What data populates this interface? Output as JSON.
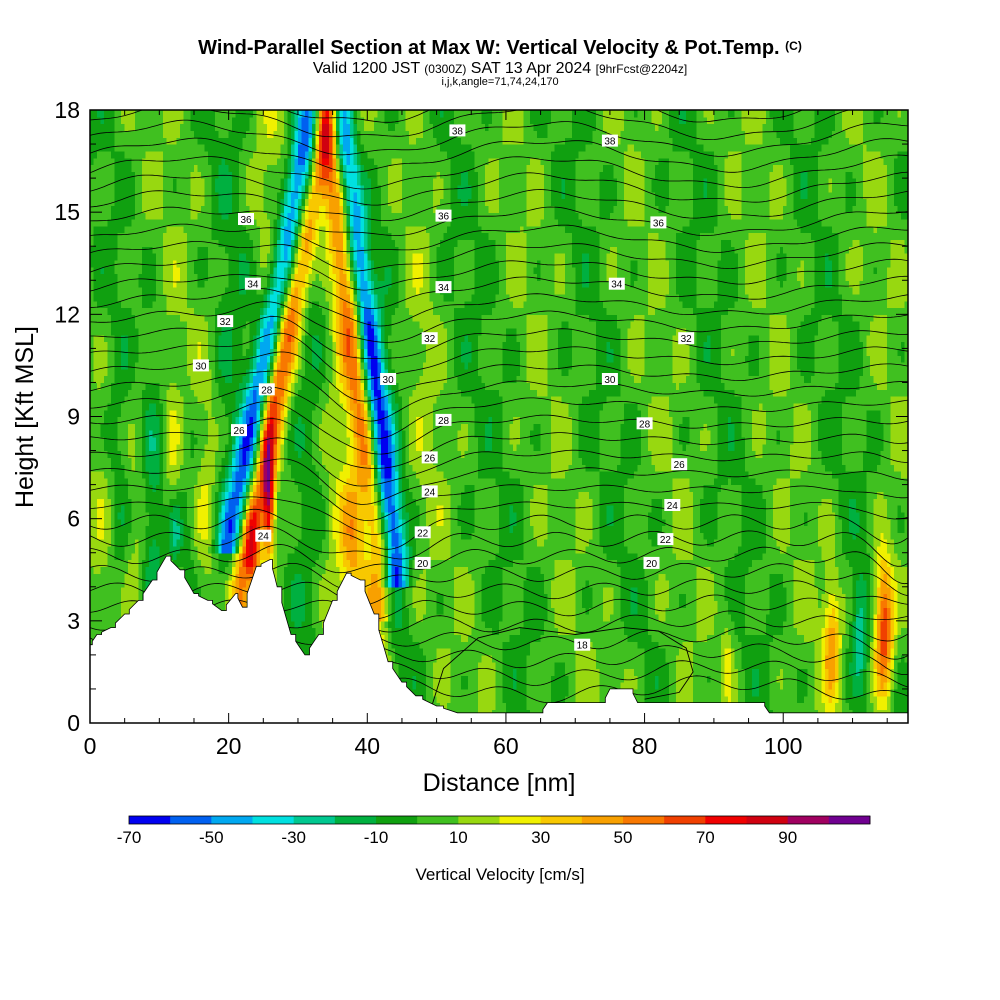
{
  "title": {
    "main": "Wind-Parallel Section at Max W: Vertical Velocity & Pot.Temp.",
    "copyright": "(C)",
    "valid_prefix": "Valid 1200 JST",
    "valid_utc": "(0300Z)",
    "valid_date": "SAT 13 Apr 2024",
    "forecast": "[9hrFcst@2204z]",
    "section_params": "i,j,k,angle=71,74,24,170"
  },
  "chart_data": {
    "type": "heatmap",
    "xlabel": "Distance [nm]",
    "ylabel": "Height [Kft MSL]",
    "xlim": [
      0,
      118
    ],
    "ylim": [
      0,
      18
    ],
    "x_ticks": [
      0,
      20,
      40,
      60,
      80,
      100
    ],
    "y_ticks": [
      0,
      3,
      6,
      9,
      12,
      15,
      18
    ],
    "colorbar": {
      "label": "Vertical Velocity [cm/s]",
      "bins": [
        -70,
        -60,
        -50,
        -40,
        -30,
        -20,
        -10,
        0,
        10,
        20,
        30,
        40,
        50,
        60,
        70,
        80,
        90,
        100
      ],
      "colors": [
        "#0000f0",
        "#0060f0",
        "#00a8f0",
        "#00e0e0",
        "#00c890",
        "#00b040",
        "#10a010",
        "#40c020",
        "#98d810",
        "#f0f000",
        "#f8c800",
        "#f8a000",
        "#f87800",
        "#f04000",
        "#f00000",
        "#d00010",
        "#a00060",
        "#700090"
      ],
      "tick_labels": [
        -70,
        -50,
        -30,
        -10,
        10,
        30,
        50,
        70,
        90
      ]
    },
    "isentropes": {
      "label": "Pot.Temp.",
      "levels": [
        18,
        20,
        22,
        24,
        26,
        28,
        30,
        32,
        34,
        36,
        38
      ],
      "labels_shown": [
        {
          "text": "38",
          "x": 53,
          "y": 17.4
        },
        {
          "text": "38",
          "x": 75,
          "y": 17.1
        },
        {
          "text": "36",
          "x": 22.5,
          "y": 14.8
        },
        {
          "text": "36",
          "x": 51,
          "y": 14.9
        },
        {
          "text": "36",
          "x": 82,
          "y": 14.7
        },
        {
          "text": "34",
          "x": 23.5,
          "y": 12.9
        },
        {
          "text": "34",
          "x": 51,
          "y": 12.8
        },
        {
          "text": "34",
          "x": 76,
          "y": 12.9
        },
        {
          "text": "32",
          "x": 19.5,
          "y": 11.8
        },
        {
          "text": "32",
          "x": 49,
          "y": 11.3
        },
        {
          "text": "32",
          "x": 86,
          "y": 11.3
        },
        {
          "text": "30",
          "x": 16,
          "y": 10.5
        },
        {
          "text": "30",
          "x": 43,
          "y": 10.1
        },
        {
          "text": "30",
          "x": 75,
          "y": 10.1
        },
        {
          "text": "28",
          "x": 25.5,
          "y": 9.8
        },
        {
          "text": "28",
          "x": 51,
          "y": 8.9
        },
        {
          "text": "28",
          "x": 80,
          "y": 8.8
        },
        {
          "text": "26",
          "x": 21.5,
          "y": 8.6
        },
        {
          "text": "26",
          "x": 49,
          "y": 7.8
        },
        {
          "text": "26",
          "x": 85,
          "y": 7.6
        },
        {
          "text": "24",
          "x": 25,
          "y": 5.5
        },
        {
          "text": "24",
          "x": 49,
          "y": 6.8
        },
        {
          "text": "24",
          "x": 84,
          "y": 6.4
        },
        {
          "text": "22",
          "x": 48,
          "y": 5.6
        },
        {
          "text": "22",
          "x": 83,
          "y": 5.4
        },
        {
          "text": "20",
          "x": 48,
          "y": 4.7
        },
        {
          "text": "20",
          "x": 81,
          "y": 4.7
        },
        {
          "text": "18",
          "x": 71,
          "y": 2.3
        }
      ]
    },
    "terrain_top": [
      [
        0,
        2.3
      ],
      [
        1,
        2.6
      ],
      [
        3,
        2.8
      ],
      [
        5,
        3.2
      ],
      [
        7,
        3.6
      ],
      [
        9,
        4.2
      ],
      [
        11,
        4.9
      ],
      [
        13,
        4.5
      ],
      [
        15,
        3.8
      ],
      [
        17,
        3.6
      ],
      [
        19,
        3.3
      ],
      [
        21,
        3.8
      ],
      [
        22,
        3.4
      ],
      [
        24,
        4.6
      ],
      [
        26,
        4.8
      ],
      [
        27,
        4.0
      ],
      [
        29,
        2.6
      ],
      [
        31,
        2.0
      ],
      [
        33,
        2.6
      ],
      [
        35,
        3.6
      ],
      [
        37,
        4.4
      ],
      [
        39,
        4.2
      ],
      [
        41,
        3.2
      ],
      [
        43,
        1.8
      ],
      [
        45,
        1.2
      ],
      [
        47,
        0.8
      ],
      [
        50,
        0.5
      ],
      [
        53,
        0.3
      ],
      [
        65,
        0.3
      ],
      [
        66,
        0.6
      ],
      [
        74,
        0.6
      ],
      [
        75,
        1.0
      ],
      [
        78,
        1.0
      ],
      [
        79,
        0.6
      ],
      [
        97,
        0.6
      ],
      [
        98,
        0.3
      ],
      [
        118,
        0.3
      ]
    ]
  }
}
